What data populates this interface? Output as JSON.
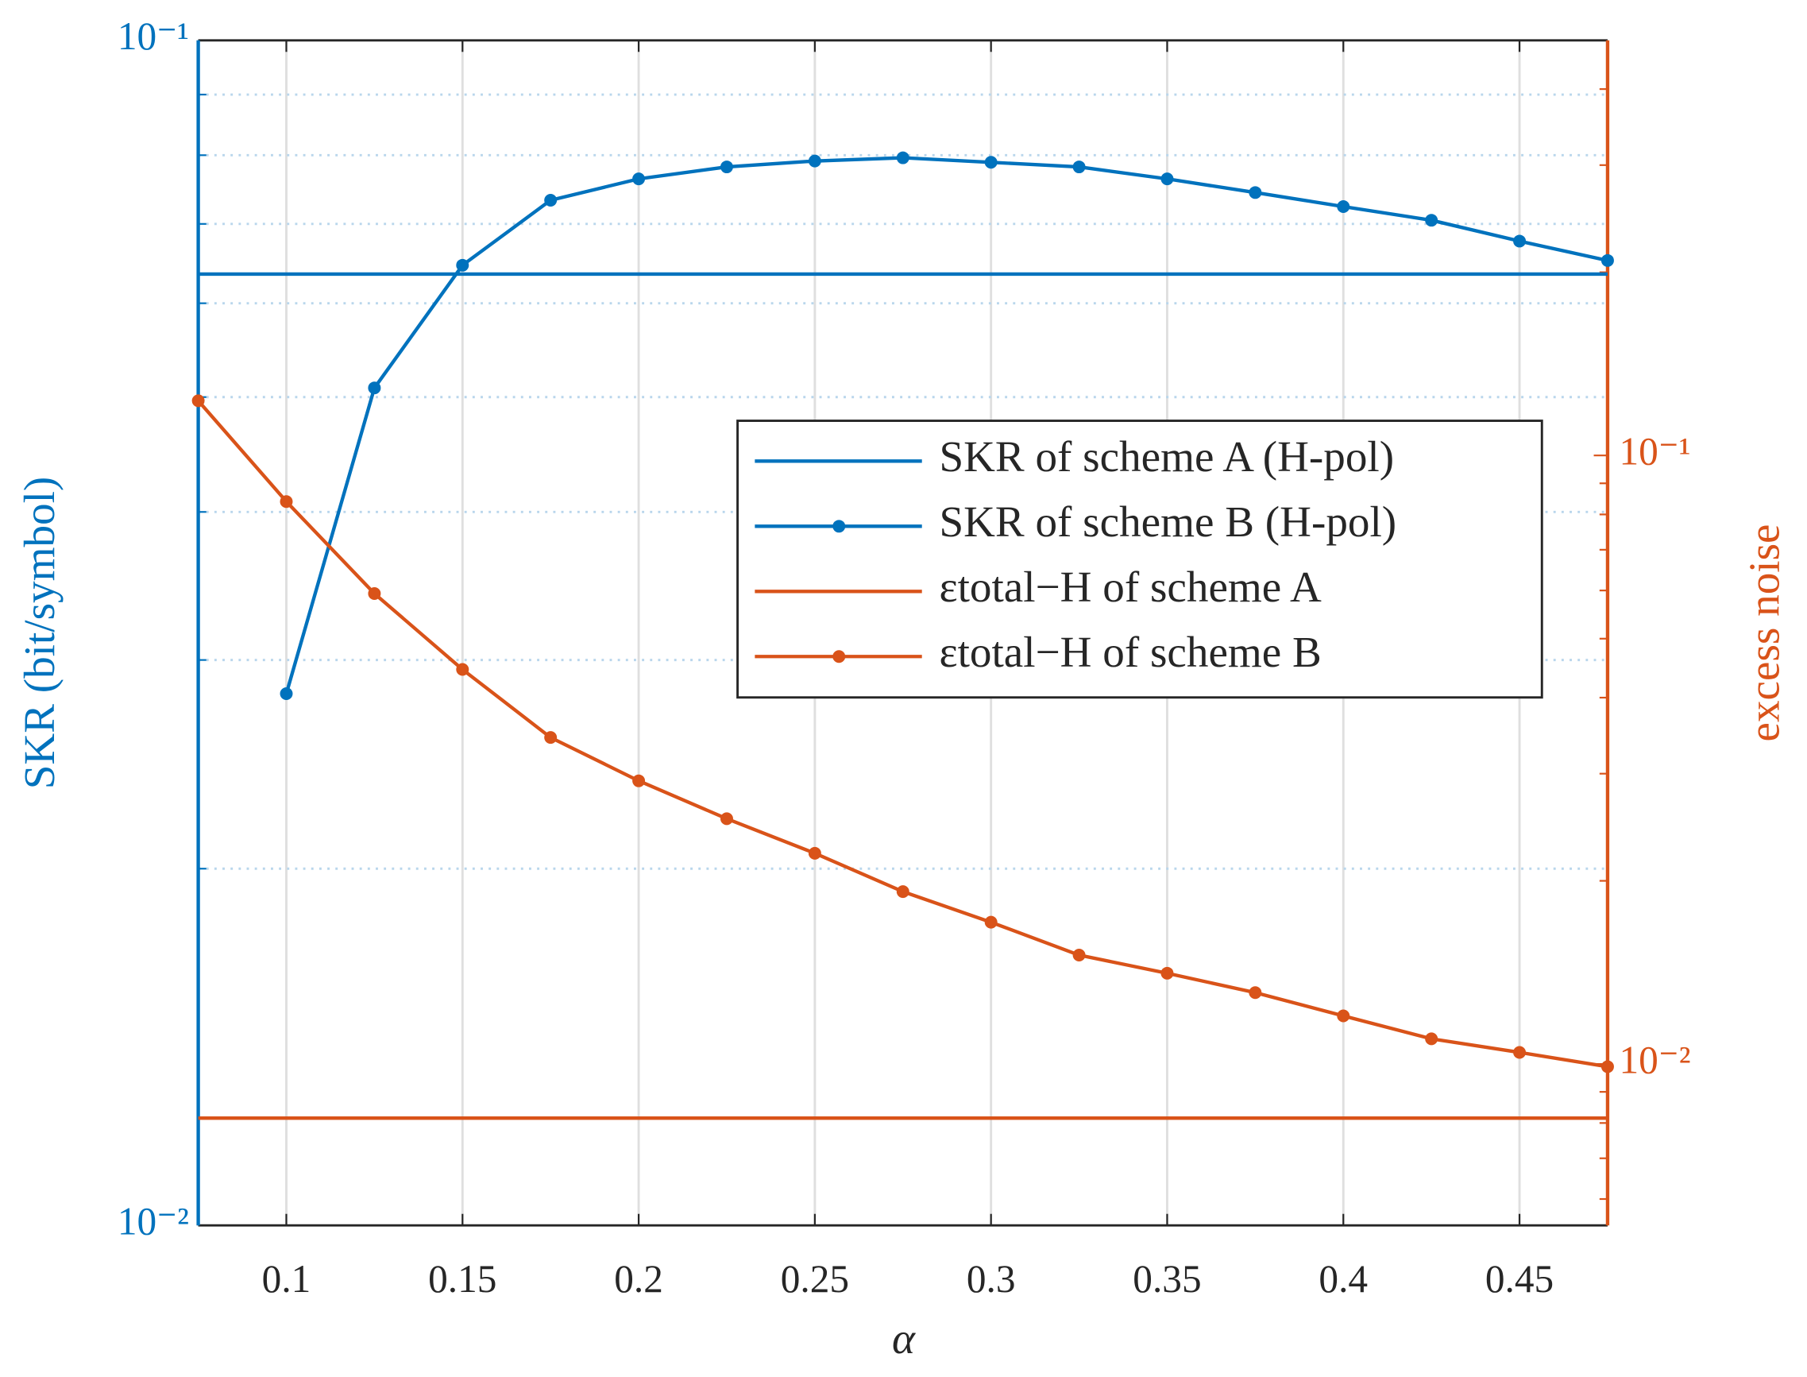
{
  "chart_data": {
    "type": "line",
    "x_label": "α",
    "y_label": "SKR (bit/symbol)",
    "y2_label": "excess noise",
    "xlim": [
      0.075,
      0.475
    ],
    "xticks": [
      0.1,
      0.15,
      0.2,
      0.25,
      0.3,
      0.35,
      0.4,
      0.45
    ],
    "ylim": [
      0.01,
      0.1
    ],
    "yscale": "log",
    "yticks": [
      {
        "value": 0.01,
        "label": "10⁻²"
      },
      {
        "value": 0.1,
        "label": "10⁻¹"
      }
    ],
    "yminor_ticks": [
      0.02,
      0.03,
      0.04,
      0.05,
      0.06,
      0.07,
      0.08,
      0.09
    ],
    "y2lim": [
      0.00543,
      0.481
    ],
    "y2scale": "log",
    "y2ticks": [
      {
        "value": 0.01,
        "label": "10⁻²"
      },
      {
        "value": 0.1,
        "label": "10⁻¹"
      }
    ],
    "y2minor_ticks": [
      0.006,
      0.007,
      0.008,
      0.009,
      0.02,
      0.03,
      0.04,
      0.05,
      0.06,
      0.07,
      0.08,
      0.09,
      0.2,
      0.3,
      0.4
    ],
    "grid": true,
    "legend": "center-right",
    "series": [
      {
        "name": "SKR of scheme A (H-pol)",
        "color": "#0072BD",
        "axis": "y",
        "marker": false,
        "x": [
          0.075,
          0.475
        ],
        "values": [
          0.0635,
          0.0635
        ]
      },
      {
        "name": "SKR of scheme B (H-pol)",
        "color": "#0072BD",
        "axis": "y",
        "marker": true,
        "x": [
          0.1,
          0.125,
          0.15,
          0.175,
          0.2,
          0.225,
          0.25,
          0.275,
          0.3,
          0.325,
          0.35,
          0.375,
          0.4,
          0.425,
          0.45,
          0.475
        ],
        "values": [
          0.0281,
          0.0509,
          0.0646,
          0.0733,
          0.0764,
          0.0782,
          0.0791,
          0.0796,
          0.0789,
          0.0782,
          0.0764,
          0.0744,
          0.0724,
          0.0705,
          0.0677,
          0.0652
        ]
      },
      {
        "name": "εtotal−H of scheme A",
        "color": "#D95319",
        "axis": "y2",
        "marker": false,
        "x": [
          0.075,
          0.475
        ],
        "values": [
          0.00815,
          0.00815
        ]
      },
      {
        "name": "εtotal−H of scheme B",
        "color": "#D95319",
        "axis": "y2",
        "marker": true,
        "x": [
          0.075,
          0.1,
          0.125,
          0.15,
          0.175,
          0.2,
          0.225,
          0.25,
          0.275,
          0.3,
          0.325,
          0.35,
          0.375,
          0.4,
          0.425,
          0.45,
          0.475
        ],
        "values": [
          0.123,
          0.084,
          0.0593,
          0.0445,
          0.0344,
          0.0292,
          0.0253,
          0.0222,
          0.0192,
          0.0171,
          0.0151,
          0.0141,
          0.0131,
          0.012,
          0.011,
          0.01045,
          0.0099
        ]
      }
    ]
  }
}
